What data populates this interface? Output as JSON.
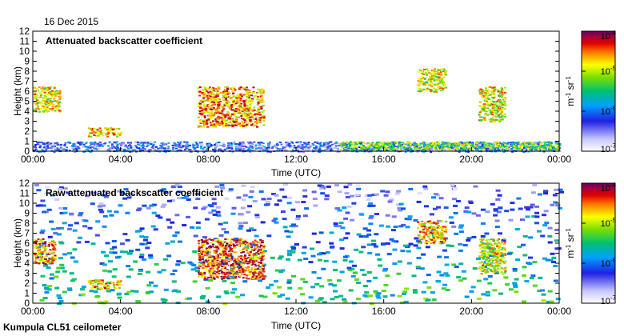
{
  "header": {
    "date": "16 Dec 2015"
  },
  "footer": {
    "instrument": "Kumpula CL51 ceilometer"
  },
  "chart_data": [
    {
      "type": "heatmap",
      "title": "Attenuated backscatter coefficient",
      "xlabel": "Time (UTC)",
      "ylabel": "Height (km)",
      "xlim": [
        0,
        24
      ],
      "ylim": [
        0,
        12
      ],
      "x_ticks": [
        "00:00",
        "04:00",
        "08:00",
        "12:00",
        "16:00",
        "20:00",
        "00:00"
      ],
      "y_ticks": [
        "0",
        "1",
        "2",
        "3",
        "4",
        "5",
        "6",
        "7",
        "8",
        "9",
        "10",
        "11",
        "12"
      ],
      "colorbar": {
        "label": "m-1 sr-1",
        "min": 1e-07,
        "max": 0.0001,
        "scale": "log",
        "ticks": [
          "10-7",
          "10-6",
          "10-5",
          "10-4"
        ]
      },
      "features": [
        {
          "name": "boundary layer",
          "t": [
            0,
            24
          ],
          "h": [
            0,
            1
          ],
          "level": 0.25
        },
        {
          "name": "cloud layer",
          "t": [
            0,
            1.2
          ],
          "h": [
            4,
            6.5
          ],
          "level": 0.7
        },
        {
          "name": "cloud layer",
          "t": [
            2.5,
            4
          ],
          "h": [
            1.5,
            2.4
          ],
          "level": 0.75
        },
        {
          "name": "descending cloud",
          "t": [
            7.5,
            10.5
          ],
          "h": [
            2.5,
            6.5
          ],
          "level": 0.8
        },
        {
          "name": "descending cloud",
          "t": [
            17.5,
            18.8
          ],
          "h": [
            6,
            8.3
          ],
          "level": 0.7
        },
        {
          "name": "cloud layer",
          "t": [
            20.3,
            21.5
          ],
          "h": [
            3,
            6.5
          ],
          "level": 0.7
        },
        {
          "name": "low cloud",
          "t": [
            14,
            24
          ],
          "h": [
            0.2,
            1
          ],
          "level": 0.6
        }
      ]
    },
    {
      "type": "heatmap",
      "title": "Raw attenuated backscatter coefficient",
      "xlabel": "Time (UTC)",
      "ylabel": "Height (km)",
      "xlim": [
        0,
        24
      ],
      "ylim": [
        0,
        12
      ],
      "x_ticks": [
        "00:00",
        "04:00",
        "08:00",
        "12:00",
        "16:00",
        "20:00",
        "00:00"
      ],
      "y_ticks": [
        "0",
        "1",
        "2",
        "3",
        "4",
        "5",
        "6",
        "7",
        "8",
        "9",
        "10",
        "11",
        "12"
      ],
      "colorbar": {
        "label": "m-1 sr-1",
        "min": 1e-07,
        "max": 0.0001,
        "scale": "log",
        "ticks": [
          "10-7",
          "10-6",
          "10-5",
          "10-4"
        ]
      },
      "features": [
        {
          "name": "noise background",
          "t": [
            0,
            24
          ],
          "h": [
            0,
            12
          ],
          "level": 0.45
        },
        {
          "name": "cloud layer",
          "t": [
            0,
            1
          ],
          "h": [
            4,
            6.5
          ],
          "level": 0.8
        },
        {
          "name": "cloud layer",
          "t": [
            2.5,
            4
          ],
          "h": [
            1.5,
            2.4
          ],
          "level": 0.75
        },
        {
          "name": "descending cloud",
          "t": [
            7.5,
            10.5
          ],
          "h": [
            2.5,
            6.5
          ],
          "level": 0.85
        },
        {
          "name": "descending cloud",
          "t": [
            17.5,
            18.8
          ],
          "h": [
            6,
            8.3
          ],
          "level": 0.75
        },
        {
          "name": "cloud layer",
          "t": [
            20.3,
            21.5
          ],
          "h": [
            3,
            6.5
          ],
          "level": 0.7
        }
      ]
    }
  ]
}
